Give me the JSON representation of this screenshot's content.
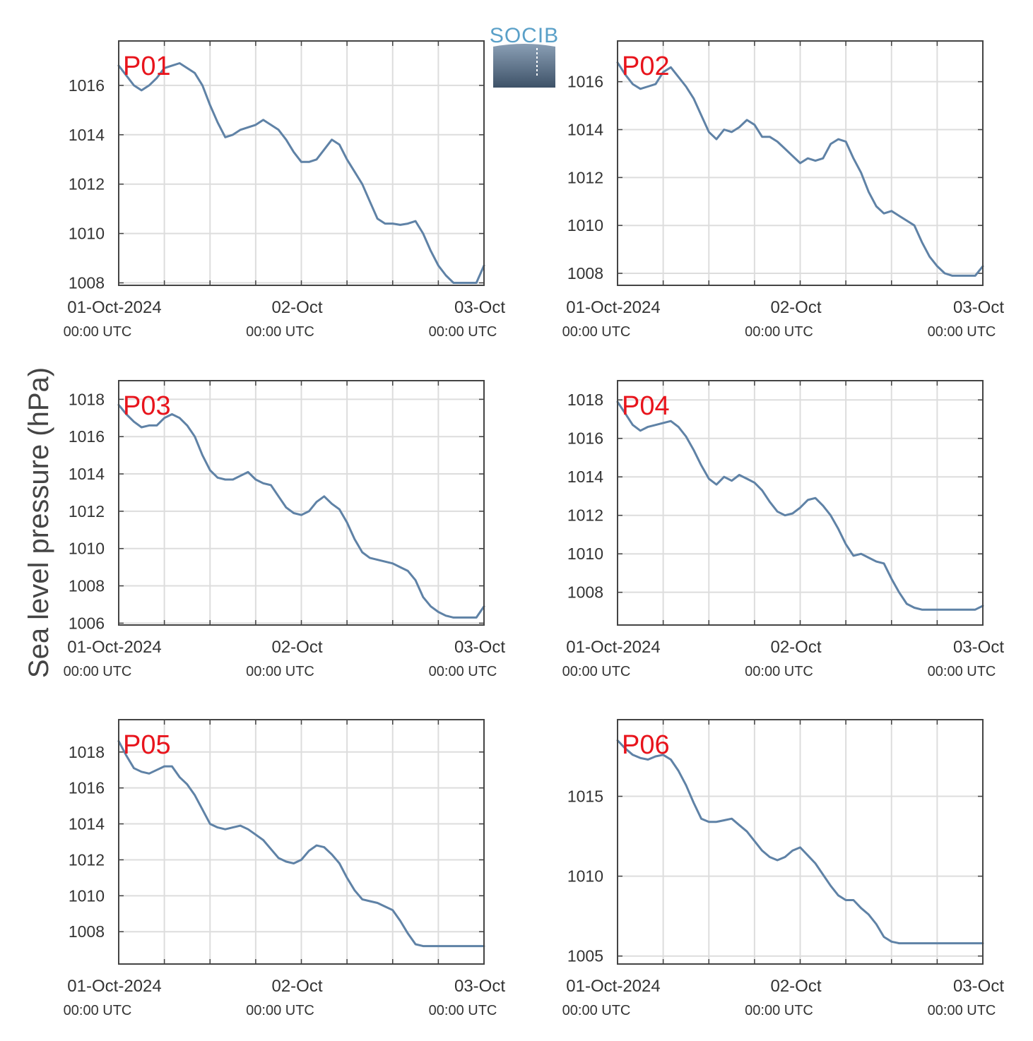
{
  "figure": {
    "ylabel": "Sea level pressure (hPa)",
    "logo_text": "SOCIB",
    "line_color": "#5f82a6",
    "label_color": "#e8141c"
  },
  "chart_data": [
    {
      "type": "line",
      "label": "P01",
      "ylim": [
        1007.9,
        1017.8
      ],
      "yticks": [
        1008,
        1010,
        1012,
        1014,
        1016
      ],
      "xlim": [
        0,
        48
      ],
      "xticks": [
        0,
        24,
        48
      ],
      "grid": true,
      "x": [
        0,
        1,
        2,
        3,
        4,
        5,
        6,
        7,
        8,
        9,
        10,
        11,
        12,
        13,
        14,
        15,
        16,
        17,
        18,
        19,
        20,
        21,
        22,
        23,
        24,
        25,
        26,
        27,
        28,
        29,
        30,
        31,
        32,
        33,
        34,
        35,
        36,
        37,
        38,
        39,
        40,
        41,
        42,
        43,
        44,
        45,
        46,
        47,
        48
      ],
      "y": [
        1016.8,
        1016.4,
        1016.0,
        1015.8,
        1016.0,
        1016.3,
        1016.7,
        1016.8,
        1016.9,
        1016.7,
        1016.5,
        1016.0,
        1015.2,
        1014.5,
        1013.9,
        1014.0,
        1014.2,
        1014.3,
        1014.4,
        1014.6,
        1014.4,
        1014.2,
        1013.8,
        1013.3,
        1012.9,
        1012.9,
        1013.0,
        1013.4,
        1013.8,
        1013.6,
        1013.0,
        1012.5,
        1012.0,
        1011.3,
        1010.6,
        1010.4,
        1010.4,
        1010.35,
        1010.4,
        1010.5,
        1010.0,
        1009.3,
        1008.7,
        1008.3,
        1008.0,
        1008.0,
        1008.0,
        1008.0,
        1008.7
      ],
      "x_ticks_main": [
        "01-Oct-2024",
        "02-Oct",
        "03-Oct"
      ],
      "x_ticks_sub": [
        "00:00 UTC",
        "00:00 UTC",
        "00:00 UTC"
      ]
    },
    {
      "type": "line",
      "label": "P02",
      "ylim": [
        1007.5,
        1017.7
      ],
      "yticks": [
        1008,
        1010,
        1012,
        1014,
        1016
      ],
      "xlim": [
        0,
        48
      ],
      "xticks": [
        0,
        24,
        48
      ],
      "grid": true,
      "x": [
        0,
        1,
        2,
        3,
        4,
        5,
        6,
        7,
        8,
        9,
        10,
        11,
        12,
        13,
        14,
        15,
        16,
        17,
        18,
        19,
        20,
        21,
        22,
        23,
        24,
        25,
        26,
        27,
        28,
        29,
        30,
        31,
        32,
        33,
        34,
        35,
        36,
        37,
        38,
        39,
        40,
        41,
        42,
        43,
        44,
        45,
        46,
        47,
        48
      ],
      "y": [
        1016.8,
        1016.3,
        1015.9,
        1015.7,
        1015.8,
        1015.9,
        1016.4,
        1016.6,
        1016.2,
        1015.8,
        1015.3,
        1014.6,
        1013.9,
        1013.6,
        1014.0,
        1013.9,
        1014.1,
        1014.4,
        1014.2,
        1013.7,
        1013.7,
        1013.5,
        1013.2,
        1012.9,
        1012.6,
        1012.8,
        1012.7,
        1012.8,
        1013.4,
        1013.6,
        1013.5,
        1012.8,
        1012.2,
        1011.4,
        1010.8,
        1010.5,
        1010.6,
        1010.4,
        1010.2,
        1010.0,
        1009.3,
        1008.7,
        1008.3,
        1008.0,
        1007.9,
        1007.9,
        1007.9,
        1007.9,
        1008.3
      ],
      "x_ticks_main": [
        "01-Oct-2024",
        "02-Oct",
        "03-Oct"
      ],
      "x_ticks_sub": [
        "00:00 UTC",
        "00:00 UTC",
        "00:00 UTC"
      ]
    },
    {
      "type": "line",
      "label": "P03",
      "ylim": [
        1005.9,
        1019.0
      ],
      "yticks": [
        1006,
        1008,
        1010,
        1012,
        1014,
        1016,
        1018
      ],
      "xlim": [
        0,
        48
      ],
      "xticks": [
        0,
        24,
        48
      ],
      "grid": true,
      "x": [
        0,
        1,
        2,
        3,
        4,
        5,
        6,
        7,
        8,
        9,
        10,
        11,
        12,
        13,
        14,
        15,
        16,
        17,
        18,
        19,
        20,
        21,
        22,
        23,
        24,
        25,
        26,
        27,
        28,
        29,
        30,
        31,
        32,
        33,
        34,
        35,
        36,
        37,
        38,
        39,
        40,
        41,
        42,
        43,
        44,
        45,
        46,
        47,
        48
      ],
      "y": [
        1017.7,
        1017.2,
        1016.8,
        1016.5,
        1016.6,
        1016.6,
        1017.0,
        1017.2,
        1017.0,
        1016.6,
        1016.0,
        1015.0,
        1014.2,
        1013.8,
        1013.7,
        1013.7,
        1013.9,
        1014.1,
        1013.7,
        1013.5,
        1013.4,
        1012.8,
        1012.2,
        1011.9,
        1011.8,
        1012.0,
        1012.5,
        1012.8,
        1012.4,
        1012.1,
        1011.4,
        1010.5,
        1009.8,
        1009.5,
        1009.4,
        1009.3,
        1009.2,
        1009.0,
        1008.8,
        1008.3,
        1007.4,
        1006.9,
        1006.6,
        1006.4,
        1006.3,
        1006.3,
        1006.3,
        1006.3,
        1006.9
      ],
      "x_ticks_main": [
        "01-Oct-2024",
        "02-Oct",
        "03-Oct"
      ],
      "x_ticks_sub": [
        "00:00 UTC",
        "00:00 UTC",
        "00:00 UTC"
      ]
    },
    {
      "type": "line",
      "label": "P04",
      "ylim": [
        1006.3,
        1019.0
      ],
      "yticks": [
        1008,
        1010,
        1012,
        1014,
        1016,
        1018
      ],
      "xlim": [
        0,
        48
      ],
      "xticks": [
        0,
        24,
        48
      ],
      "grid": true,
      "x": [
        0,
        1,
        2,
        3,
        4,
        5,
        6,
        7,
        8,
        9,
        10,
        11,
        12,
        13,
        14,
        15,
        16,
        17,
        18,
        19,
        20,
        21,
        22,
        23,
        24,
        25,
        26,
        27,
        28,
        29,
        30,
        31,
        32,
        33,
        34,
        35,
        36,
        37,
        38,
        39,
        40,
        41,
        42,
        43,
        44,
        45,
        46,
        47,
        48
      ],
      "y": [
        1017.9,
        1017.3,
        1016.7,
        1016.4,
        1016.6,
        1016.7,
        1016.8,
        1016.9,
        1016.6,
        1016.1,
        1015.4,
        1014.6,
        1013.9,
        1013.6,
        1014.0,
        1013.8,
        1014.1,
        1013.9,
        1013.7,
        1013.3,
        1012.7,
        1012.2,
        1012.0,
        1012.1,
        1012.4,
        1012.8,
        1012.9,
        1012.5,
        1012.0,
        1011.3,
        1010.5,
        1009.9,
        1010.0,
        1009.8,
        1009.6,
        1009.5,
        1008.7,
        1008.0,
        1007.4,
        1007.2,
        1007.1,
        1007.1,
        1007.1,
        1007.1,
        1007.1,
        1007.1,
        1007.1,
        1007.1,
        1007.3
      ],
      "x_ticks_main": [
        "01-Oct-2024",
        "02-Oct",
        "03-Oct"
      ],
      "x_ticks_sub": [
        "00:00 UTC",
        "00:00 UTC",
        "00:00 UTC"
      ]
    },
    {
      "type": "line",
      "label": "P05",
      "ylim": [
        1006.2,
        1019.8
      ],
      "yticks": [
        1008,
        1010,
        1012,
        1014,
        1016,
        1018
      ],
      "xlim": [
        0,
        48
      ],
      "xticks": [
        0,
        24,
        48
      ],
      "grid": true,
      "x": [
        0,
        1,
        2,
        3,
        4,
        5,
        6,
        7,
        8,
        9,
        10,
        11,
        12,
        13,
        14,
        15,
        16,
        17,
        18,
        19,
        20,
        21,
        22,
        23,
        24,
        25,
        26,
        27,
        28,
        29,
        30,
        31,
        32,
        33,
        34,
        35,
        36,
        37,
        38,
        39,
        40,
        41,
        42,
        43,
        44,
        45,
        46,
        47,
        48
      ],
      "y": [
        1018.6,
        1017.8,
        1017.1,
        1016.9,
        1016.8,
        1017.0,
        1017.2,
        1017.2,
        1016.6,
        1016.2,
        1015.6,
        1014.8,
        1014.0,
        1013.8,
        1013.7,
        1013.8,
        1013.9,
        1013.7,
        1013.4,
        1013.1,
        1012.6,
        1012.1,
        1011.9,
        1011.8,
        1012.0,
        1012.5,
        1012.8,
        1012.7,
        1012.3,
        1011.8,
        1011.0,
        1010.3,
        1009.8,
        1009.7,
        1009.6,
        1009.4,
        1009.2,
        1008.6,
        1007.9,
        1007.3,
        1007.2,
        1007.2,
        1007.2,
        1007.2,
        1007.2,
        1007.2,
        1007.2,
        1007.2,
        1007.2
      ],
      "x_ticks_main": [
        "01-Oct-2024",
        "02-Oct",
        "03-Oct"
      ],
      "x_ticks_sub": [
        "00:00 UTC",
        "00:00 UTC",
        "00:00 UTC"
      ]
    },
    {
      "type": "line",
      "label": "P06",
      "ylim": [
        1004.5,
        1019.8
      ],
      "yticks": [
        1005,
        1010,
        1015
      ],
      "xlim": [
        0,
        48
      ],
      "xticks": [
        0,
        24,
        48
      ],
      "grid": true,
      "x": [
        0,
        1,
        2,
        3,
        4,
        5,
        6,
        7,
        8,
        9,
        10,
        11,
        12,
        13,
        14,
        15,
        16,
        17,
        18,
        19,
        20,
        21,
        22,
        23,
        24,
        25,
        26,
        27,
        28,
        29,
        30,
        31,
        32,
        33,
        34,
        35,
        36,
        37,
        38,
        39,
        40,
        41,
        42,
        43,
        44,
        45,
        46,
        47,
        48
      ],
      "y": [
        1018.5,
        1018.0,
        1017.6,
        1017.4,
        1017.3,
        1017.5,
        1017.6,
        1017.3,
        1016.6,
        1015.7,
        1014.6,
        1013.6,
        1013.4,
        1013.4,
        1013.5,
        1013.6,
        1013.2,
        1012.8,
        1012.2,
        1011.6,
        1011.2,
        1011.0,
        1011.2,
        1011.6,
        1011.8,
        1011.3,
        1010.8,
        1010.1,
        1009.4,
        1008.8,
        1008.5,
        1008.5,
        1008.0,
        1007.6,
        1007.0,
        1006.2,
        1005.9,
        1005.8,
        1005.8,
        1005.8,
        1005.8,
        1005.8,
        1005.8,
        1005.8,
        1005.8,
        1005.8,
        1005.8,
        1005.8,
        1005.8
      ],
      "x_ticks_main": [
        "01-Oct-2024",
        "02-Oct",
        "03-Oct"
      ],
      "x_ticks_sub": [
        "00:00 UTC",
        "00:00 UTC",
        "00:00 UTC"
      ]
    }
  ]
}
